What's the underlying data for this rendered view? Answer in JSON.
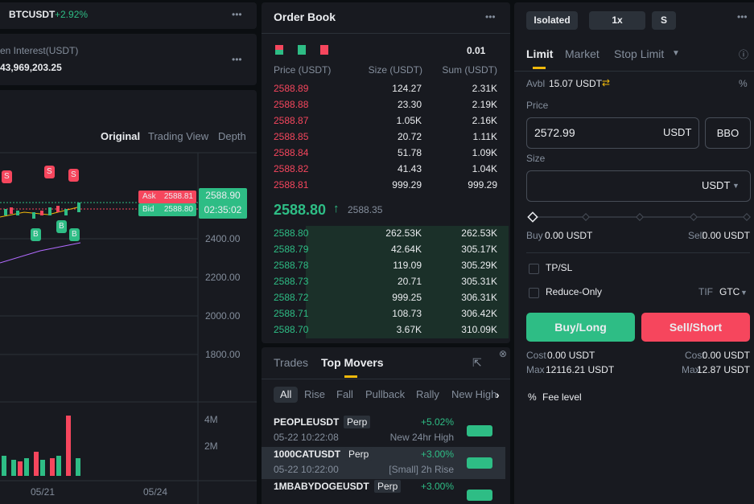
{
  "ticker": {
    "symbol": "BTCUSDT",
    "change": "+2.92%"
  },
  "open_interest": {
    "label": "en Interest(USDT)",
    "value": "43,969,203.25"
  },
  "chart": {
    "views": [
      "Original",
      "Trading View",
      "Depth"
    ],
    "ask_label": "Ask",
    "ask": "2588.81",
    "bid_label": "Bid",
    "bid": "2588.80",
    "last_price": "2588.90",
    "countdown": "02:35:02",
    "price_axis": [
      "2400.00",
      "2200.00",
      "2000.00",
      "1800.00"
    ],
    "volume_axis": [
      "4M",
      "2M"
    ],
    "dates": [
      "05/21",
      "05/24"
    ],
    "sell_marker": "S",
    "buy_marker": "B"
  },
  "order_book": {
    "title": "Order Book",
    "tick_size": "0.01",
    "columns": [
      "Price (USDT)",
      "Size (USDT)",
      "Sum (USDT)"
    ],
    "asks": [
      [
        "2588.89",
        "124.27",
        "2.31K"
      ],
      [
        "2588.88",
        "23.30",
        "2.19K"
      ],
      [
        "2588.87",
        "1.05K",
        "2.16K"
      ],
      [
        "2588.85",
        "20.72",
        "1.11K"
      ],
      [
        "2588.84",
        "51.78",
        "1.09K"
      ],
      [
        "2588.82",
        "41.43",
        "1.04K"
      ],
      [
        "2588.81",
        "999.29",
        "999.29"
      ]
    ],
    "mid_price": "2588.80",
    "mark_price": "2588.35",
    "bids": [
      [
        "2588.80",
        "262.53K",
        "262.53K"
      ],
      [
        "2588.79",
        "42.64K",
        "305.17K"
      ],
      [
        "2588.78",
        "119.09",
        "305.29K"
      ],
      [
        "2588.73",
        "20.71",
        "305.31K"
      ],
      [
        "2588.72",
        "999.25",
        "306.31K"
      ],
      [
        "2588.71",
        "108.73",
        "306.42K"
      ],
      [
        "2588.70",
        "3.67K",
        "310.09K"
      ]
    ]
  },
  "movers": {
    "tabs": [
      "Trades",
      "Top Movers"
    ],
    "filters": [
      "All",
      "Rise",
      "Fall",
      "Pullback",
      "Rally",
      "New High"
    ],
    "rows": [
      {
        "symbol": "PEOPLEUSDT",
        "tag": "Perp",
        "change": "+5.02%",
        "time": "05-22 10:22:08",
        "event": "New 24hr High"
      },
      {
        "symbol": "1000CATUSDT",
        "tag": "Perp",
        "change": "+3.00%",
        "time": "05-22 10:22:00",
        "event": "[Small] 2h Rise"
      },
      {
        "symbol": "1MBABYDOGEUSDT",
        "tag": "Perp",
        "change": "+3.00%"
      }
    ]
  },
  "order_form": {
    "margin_mode": "Isolated",
    "leverage": "1x",
    "asset_mode": "S",
    "tabs": [
      "Limit",
      "Market",
      "Stop Limit"
    ],
    "avbl_label": "Avbl",
    "avbl": "15.07 USDT",
    "price_label": "Price",
    "price": "2572.99",
    "price_unit": "USDT",
    "bbo": "BBO",
    "size_label": "Size",
    "size_unit": "USDT",
    "buy_label": "Buy",
    "buy_amount": "0.00 USDT",
    "sell_label": "Sell",
    "sell_amount": "0.00 USDT",
    "tpsl": "TP/SL",
    "reduce_only": "Reduce-Only",
    "tif_label": "TIF",
    "tif": "GTC",
    "buy_button": "Buy/Long",
    "sell_button": "Sell/Short",
    "cost_label": "Cost",
    "buy_cost": "0.00 USDT",
    "sell_cost": "0.00 USDT",
    "max_label": "Max",
    "buy_max": "12116.21 USDT",
    "sell_max": "12.87 USDT",
    "fee_level": "Fee level"
  }
}
